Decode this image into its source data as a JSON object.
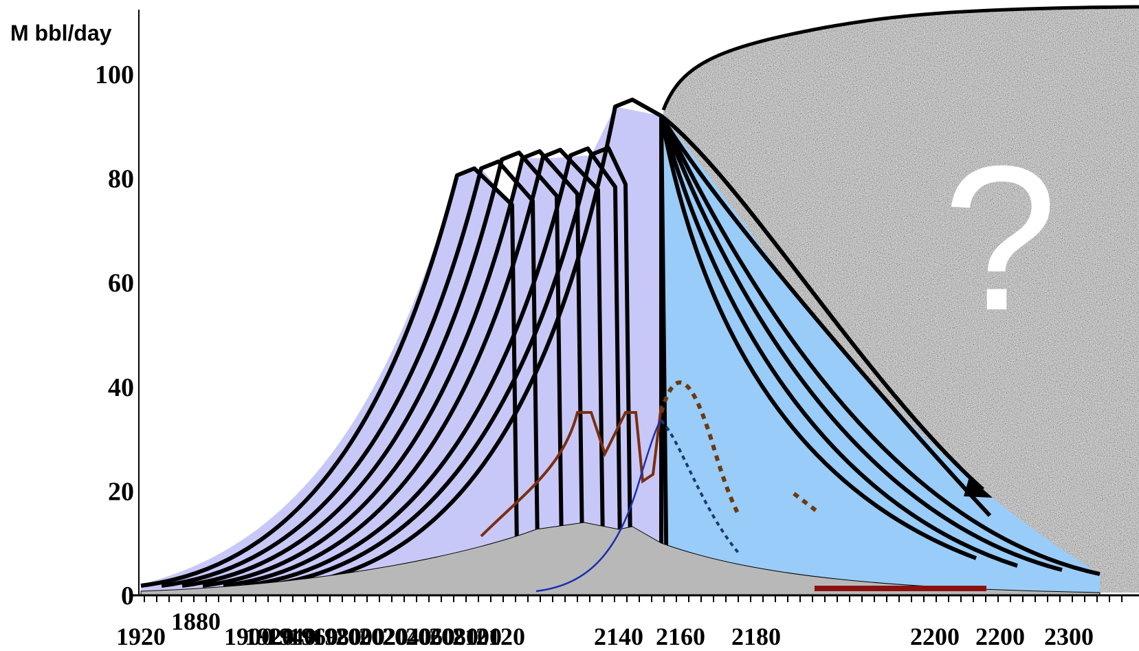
{
  "chart_data": {
    "type": "area",
    "title": "",
    "xlabel": "",
    "ylabel": "M bbl/day",
    "ylim": [
      0,
      110
    ],
    "y_ticks": [
      0,
      20,
      40,
      60,
      80,
      100
    ],
    "x_tick_labels": [
      "1920",
      "1880",
      "1900",
      "1920",
      "1940",
      "1960",
      "1980",
      "2000",
      "2020",
      "2040",
      "2060",
      "2080",
      "2100",
      "2120",
      "2140",
      "2160",
      "2180",
      "2200",
      "2200",
      "2300"
    ],
    "annotation": "?",
    "colors": {
      "history_fill": "#c8c8f8",
      "forecast_fill": "#99ccf8",
      "gray_band": "#b8b8b8",
      "speckle_region": "#9a9a9a",
      "brown_line": "#7a2e10",
      "blue_line": "#1a2fb0",
      "brown_dotted": "#6b3a10",
      "navy_dotted": "#1a3a6e",
      "outline": "#000000"
    },
    "series": [
      {
        "kind": "forecast-wave",
        "peak": 82,
        "plateau_start": 1900,
        "end": 1980
      },
      {
        "kind": "forecast-wave",
        "peak": 83,
        "plateau_start": 1910,
        "end": 1990
      },
      {
        "kind": "forecast-wave",
        "peak": 84,
        "plateau_start": 1920,
        "end": 2000
      },
      {
        "kind": "forecast-wave",
        "peak": 84,
        "plateau_start": 1930,
        "end": 2010
      },
      {
        "kind": "forecast-wave",
        "peak": 85,
        "plateau_start": 1940,
        "end": 2020
      },
      {
        "kind": "forecast-wave",
        "peak": 86,
        "plateau_start": 1950,
        "end": 2030
      },
      {
        "kind": "forecast-wave",
        "peak": 87,
        "plateau_start": 1960,
        "end": 2040
      },
      {
        "kind": "forecast-wave",
        "peak": 92,
        "plateau_start": 1980,
        "end": 2060
      },
      {
        "kind": "decline",
        "peak": 92,
        "peak_year": 2010,
        "end_year": 2300,
        "end_value": 7
      },
      {
        "kind": "decline",
        "peak": 92,
        "peak_year": 2010,
        "end_year": 2260,
        "end_value": 6
      },
      {
        "kind": "decline",
        "peak": 92,
        "peak_year": 2010,
        "end_year": 2220,
        "end_value": 5
      },
      {
        "kind": "decline",
        "peak": 92,
        "peak_year": 2010,
        "end_year": 2180,
        "end_value": 4
      }
    ]
  }
}
